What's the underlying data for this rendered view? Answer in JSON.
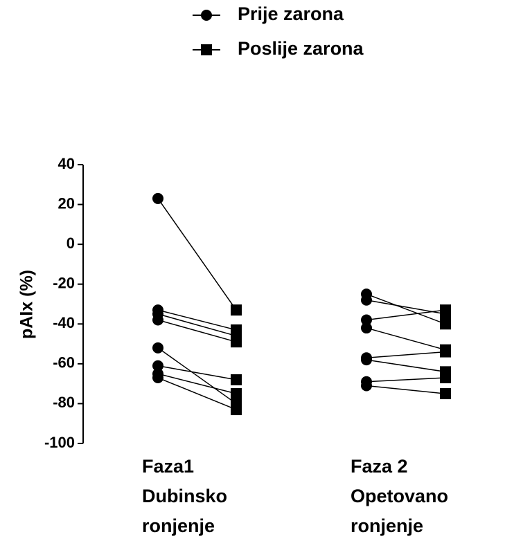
{
  "chart_data": {
    "type": "paired",
    "y_label": "pAIx (%)",
    "categories": [
      "Faza1\nDubinsko\nronjenje",
      "Faza 2\nOpetovano\nronjenje"
    ],
    "series": [
      {
        "name": "Prije zarona",
        "marker": "circle",
        "color": "#000000",
        "values": [
          [
            23,
            -33,
            -35,
            -38,
            -52,
            -61,
            -65,
            -67
          ],
          [
            -25,
            -28,
            -38,
            -42,
            -57,
            -58,
            -69,
            -71
          ]
        ]
      },
      {
        "name": "Poslije zarona",
        "marker": "square",
        "color": "#000000",
        "values": [
          [
            -33,
            -43,
            -46,
            -49,
            -80,
            -68,
            -75,
            -83
          ],
          [
            -40,
            -35,
            -33,
            -53,
            -54,
            -64,
            -67,
            -75
          ]
        ]
      }
    ],
    "ylim": [
      -100,
      40
    ],
    "yticks": [
      -100,
      -80,
      -60,
      -40,
      -20,
      0,
      20,
      40
    ]
  }
}
